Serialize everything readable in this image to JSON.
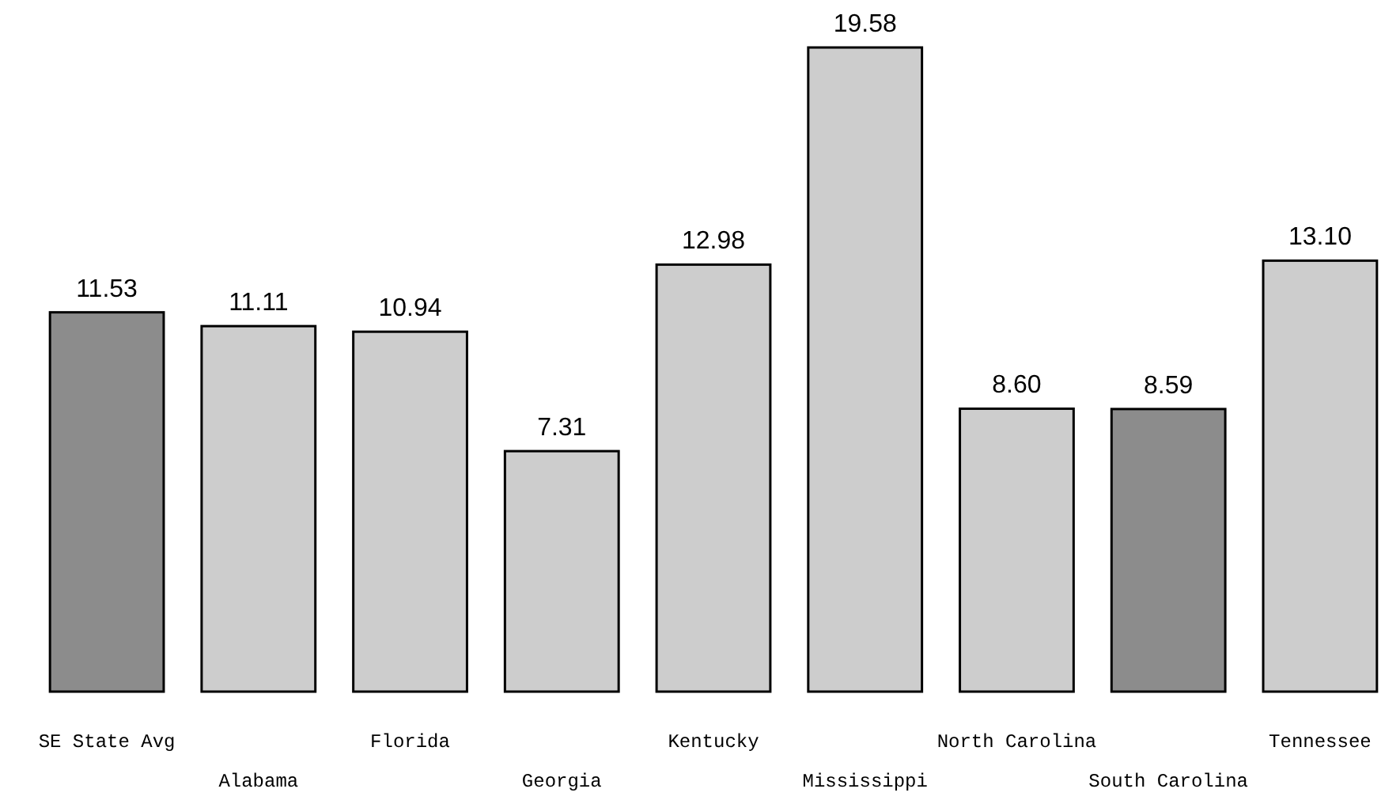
{
  "chart_data": {
    "type": "bar",
    "categories": [
      "SE State Avg",
      "Alabama",
      "Florida",
      "Georgia",
      "Kentucky",
      "Mississippi",
      "North Carolina",
      "South Carolina",
      "Tennessee"
    ],
    "values": [
      11.53,
      11.11,
      10.94,
      7.31,
      12.98,
      19.58,
      8.6,
      8.59,
      13.1
    ],
    "colors": [
      "#8c8c8c",
      "#cdcdcd",
      "#cdcdcd",
      "#cdcdcd",
      "#cdcdcd",
      "#cdcdcd",
      "#cdcdcd",
      "#8c8c8c",
      "#cdcdcd"
    ],
    "value_labels": [
      "11.53",
      "11.11",
      "10.94",
      "7.31",
      "12.98",
      "19.58",
      "8.60",
      "8.59",
      "13.10"
    ]
  }
}
